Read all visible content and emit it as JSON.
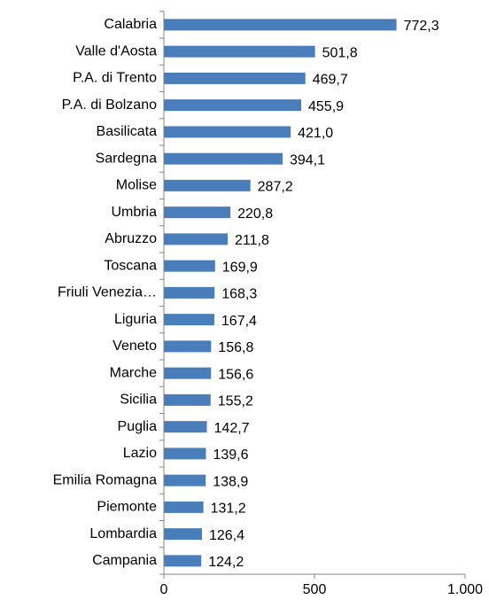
{
  "chart_data": {
    "type": "barh",
    "categories": [
      "Calabria",
      "Valle d'Aosta",
      "P.A. di Trento",
      "P.A. di Bolzano",
      "Basilicata",
      "Sardegna",
      "Molise",
      "Umbria",
      "Abruzzo",
      "Toscana",
      "Friuli Venezia…",
      "Liguria",
      "Veneto",
      "Marche",
      "Sicilia",
      "Puglia",
      "Lazio",
      "Emilia Romagna",
      "Piemonte",
      "Lombardia",
      "Campania"
    ],
    "values": [
      772.3,
      501.8,
      469.7,
      455.9,
      421.0,
      394.1,
      287.2,
      220.8,
      211.8,
      169.9,
      168.3,
      167.4,
      156.8,
      156.6,
      155.2,
      142.7,
      139.6,
      138.9,
      131.2,
      126.4,
      124.2
    ],
    "value_labels": [
      "772,3",
      "501,8",
      "469,7",
      "455,9",
      "421,0",
      "394,1",
      "287,2",
      "220,8",
      "211,8",
      "169,9",
      "168,3",
      "167,4",
      "156,8",
      "156,6",
      "155,2",
      "142,7",
      "139,6",
      "138,9",
      "131,2",
      "126,4",
      "124,2"
    ],
    "color": "#4a7ebb",
    "xlim": [
      0,
      1000
    ],
    "xticks": [
      0,
      500,
      {
        "value": 1000,
        "label": "1.000"
      }
    ]
  }
}
